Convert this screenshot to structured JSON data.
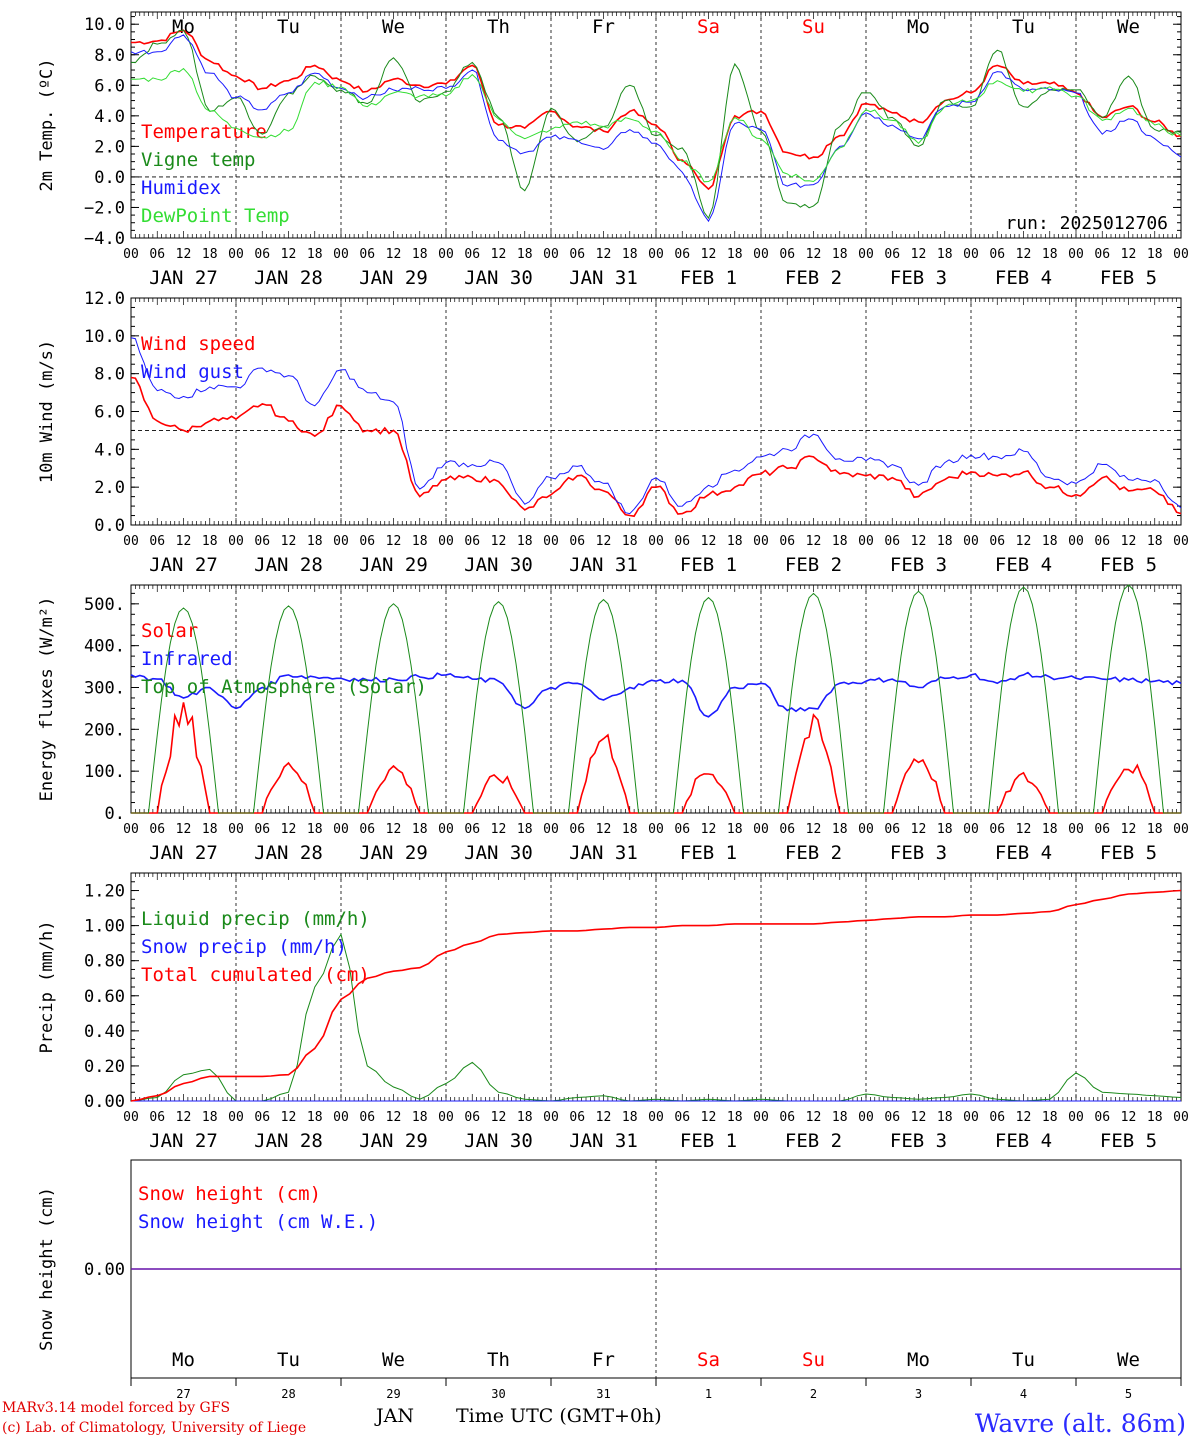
{
  "run_label": "run: 2025012706",
  "footer": {
    "model": "MARv3.14 model forced by GFS",
    "credit": "(c) Lab. of Climatology, University of Liege",
    "station": "Wavre (alt. 86m)",
    "xaxis_title": "Time UTC (GMT+0h)",
    "month": "JAN"
  },
  "days": [
    "Mo",
    "Tu",
    "We",
    "Th",
    "Fr",
    "Sa",
    "Su",
    "Mo",
    "Tu",
    "We"
  ],
  "weekend_color": "#ff0000",
  "weekend_days": [
    5,
    6
  ],
  "date_labels": [
    "JAN 27",
    "JAN 28",
    "JAN 29",
    "JAN 30",
    "JAN 31",
    "FEB  1",
    "FEB  2",
    "FEB  3",
    "FEB  4",
    "FEB  5"
  ],
  "day_numbers": [
    "27",
    "28",
    "29",
    "30",
    "31",
    "1",
    "2",
    "3",
    "4",
    "5"
  ],
  "hour_labels": [
    "00",
    "06",
    "12",
    "18"
  ],
  "colors": {
    "red": "#ff0000",
    "green": "#1a8a1a",
    "blue": "#1a1aff",
    "lightgreen": "#33dd33"
  },
  "chart_data": [
    {
      "type": "line",
      "id": "temperature",
      "ylabel": "2m Temp. (ºC)",
      "ylim": [
        -4,
        10.8
      ],
      "yticks": [
        -4,
        -2,
        0,
        2,
        4,
        6,
        8,
        10
      ],
      "yticklabels": [
        "−4.0",
        "−2.0",
        "0.0",
        "2.0",
        "4.0",
        "6.0",
        "8.0",
        "10.0"
      ],
      "reference_line": 0,
      "x_hours": [
        0,
        6,
        12,
        18,
        24,
        30,
        36,
        42,
        48,
        54,
        60,
        66,
        72,
        78,
        84,
        90,
        96,
        102,
        108,
        114,
        120,
        126,
        132,
        138,
        144,
        150,
        156,
        162,
        168,
        174,
        180,
        186,
        192,
        198,
        204,
        210,
        216,
        222,
        228,
        234,
        240
      ],
      "series": [
        {
          "name": "Temperature",
          "color": "red",
          "values": [
            8.8,
            8.9,
            9.6,
            7.6,
            6.6,
            5.8,
            6.3,
            7.3,
            6.3,
            5.6,
            6.4,
            6.0,
            6.1,
            7.3,
            3.4,
            3.2,
            4.3,
            3.3,
            3.0,
            4.3,
            3.4,
            1.1,
            -0.8,
            4.0,
            4.3,
            1.6,
            1.3,
            2.7,
            4.8,
            4.2,
            3.6,
            5.0,
            5.5,
            7.3,
            6.1,
            6.1,
            5.5,
            3.9,
            4.6,
            3.6,
            2.7
          ]
        },
        {
          "name": "Vigne temp",
          "color": "green",
          "values": [
            7.5,
            8.7,
            9.6,
            4.3,
            5.2,
            2.8,
            5.5,
            6.6,
            5.7,
            4.8,
            7.8,
            4.9,
            5.6,
            7.5,
            3.9,
            -0.9,
            4.5,
            2.3,
            3.3,
            6.0,
            2.7,
            1.9,
            -2.7,
            7.4,
            3.0,
            -1.7,
            -1.9,
            3.3,
            5.5,
            3.9,
            2.0,
            5.0,
            4.6,
            8.3,
            4.6,
            5.7,
            5.7,
            3.9,
            6.6,
            3.1,
            2.9
          ]
        },
        {
          "name": "Humidex",
          "color": "blue",
          "values": [
            8.2,
            8.2,
            9.3,
            6.8,
            5.2,
            4.4,
            5.5,
            6.8,
            5.8,
            5.2,
            5.7,
            5.8,
            5.8,
            7.0,
            2.4,
            1.6,
            2.6,
            2.4,
            1.8,
            3.1,
            2.2,
            0.3,
            -2.9,
            3.5,
            3.1,
            -0.6,
            -0.5,
            2.0,
            4.2,
            3.4,
            2.5,
            4.6,
            4.9,
            6.9,
            5.7,
            5.7,
            5.5,
            2.8,
            3.8,
            2.5,
            1.3
          ]
        },
        {
          "name": "DewPoint Temp",
          "color": "lightgreen",
          "values": [
            6.4,
            6.4,
            7.1,
            4.3,
            3.2,
            2.6,
            3.0,
            6.2,
            5.9,
            4.6,
            5.5,
            5.3,
            5.3,
            6.7,
            3.8,
            2.5,
            3.1,
            3.6,
            3.3,
            3.8,
            3.0,
            1.0,
            -0.3,
            3.9,
            2.5,
            0.2,
            -0.3,
            1.9,
            4.4,
            3.7,
            2.2,
            4.6,
            5.0,
            6.3,
            5.6,
            5.9,
            5.3,
            3.7,
            4.5,
            3.4,
            2.7
          ]
        }
      ]
    },
    {
      "type": "line",
      "id": "wind",
      "ylabel": "10m Wind (m/s)",
      "ylim": [
        0,
        12
      ],
      "yticks": [
        0,
        2,
        4,
        6,
        8,
        10,
        12
      ],
      "yticklabels": [
        "0.0",
        "2.0",
        "4.0",
        "6.0",
        "8.0",
        "10.0",
        "12.0"
      ],
      "reference_line": 5,
      "x_hours": [
        0,
        6,
        12,
        18,
        24,
        30,
        36,
        42,
        48,
        54,
        60,
        66,
        72,
        78,
        84,
        90,
        96,
        102,
        108,
        114,
        120,
        126,
        132,
        138,
        144,
        150,
        156,
        162,
        168,
        174,
        180,
        186,
        192,
        198,
        204,
        210,
        216,
        222,
        228,
        234,
        240
      ],
      "series": [
        {
          "name": "Wind speed",
          "color": "red",
          "values": [
            7.8,
            5.5,
            5.0,
            5.5,
            5.6,
            6.4,
            5.5,
            4.7,
            6.3,
            5.0,
            5.0,
            1.5,
            2.4,
            2.5,
            2.3,
            0.8,
            1.6,
            2.6,
            1.8,
            0.5,
            2.0,
            0.6,
            1.6,
            2.0,
            2.7,
            3.0,
            3.6,
            2.7,
            2.6,
            2.5,
            1.5,
            2.4,
            2.8,
            2.6,
            2.8,
            2.0,
            1.6,
            2.5,
            1.8,
            1.8,
            0.6
          ]
        },
        {
          "name": "Wind gust",
          "color": "blue",
          "values": [
            9.9,
            7.1,
            6.8,
            7.3,
            7.3,
            8.3,
            7.9,
            6.3,
            8.2,
            7.0,
            6.5,
            1.9,
            3.3,
            3.2,
            3.3,
            1.1,
            2.5,
            3.1,
            2.2,
            0.6,
            2.5,
            1.0,
            2.1,
            2.9,
            3.6,
            4.0,
            4.8,
            3.5,
            3.4,
            3.2,
            2.1,
            3.3,
            3.7,
            3.6,
            3.9,
            2.5,
            2.2,
            3.2,
            2.4,
            2.4,
            0.9
          ]
        }
      ]
    },
    {
      "type": "line",
      "id": "energy",
      "ylabel": "Energy fluxes (W/m²)",
      "ylim": [
        0,
        545
      ],
      "yticks": [
        0,
        100,
        200,
        300,
        400,
        500
      ],
      "yticklabels": [
        "0.",
        "100.",
        "200.",
        "300.",
        "400.",
        "500."
      ],
      "x_hours": [
        0,
        6,
        12,
        18,
        24,
        30,
        36,
        42,
        48,
        54,
        60,
        66,
        72,
        78,
        84,
        90,
        96,
        102,
        108,
        114,
        120,
        126,
        132,
        138,
        144,
        150,
        156,
        162,
        168,
        174,
        180,
        186,
        192,
        198,
        204,
        210,
        216,
        222,
        228,
        234,
        240
      ],
      "series": [
        {
          "name": "Solar",
          "color": "red",
          "peaks": [
            270,
            140,
            125,
            100,
            205,
            115,
            235,
            155,
            100,
            135
          ]
        },
        {
          "name": "Infrared",
          "color": "blue",
          "values": [
            330,
            320,
            275,
            300,
            250,
            300,
            330,
            325,
            322,
            318,
            320,
            325,
            330,
            320,
            315,
            250,
            300,
            310,
            270,
            300,
            315,
            317,
            230,
            300,
            310,
            245,
            250,
            310,
            315,
            320,
            300,
            322,
            330,
            310,
            330,
            325,
            322,
            320,
            318,
            315,
            310
          ]
        },
        {
          "name": "Top of Atmosphere (Solar)",
          "color": "green",
          "peaks": [
            490,
            495,
            500,
            505,
            510,
            515,
            525,
            530,
            540,
            545
          ]
        }
      ]
    },
    {
      "type": "line",
      "id": "precip",
      "ylabel": "Precip (mm/h)",
      "ylim": [
        0,
        1.3
      ],
      "yticks": [
        0,
        0.2,
        0.4,
        0.6,
        0.8,
        1.0,
        1.2
      ],
      "yticklabels": [
        "0.00",
        "0.20",
        "0.40",
        "0.60",
        "0.80",
        "1.00",
        "1.20"
      ],
      "x_hours": [
        0,
        6,
        12,
        18,
        24,
        30,
        36,
        42,
        48,
        54,
        60,
        66,
        72,
        78,
        84,
        90,
        96,
        102,
        108,
        114,
        120,
        126,
        132,
        138,
        144,
        150,
        156,
        162,
        168,
        174,
        180,
        186,
        192,
        198,
        204,
        210,
        216,
        222,
        228,
        234,
        240
      ],
      "series": [
        {
          "name": "Liquid precip (mm/h)",
          "color": "green",
          "values": [
            0.0,
            0.02,
            0.15,
            0.18,
            0.0,
            0.0,
            0.05,
            0.65,
            0.95,
            0.2,
            0.08,
            0.01,
            0.1,
            0.22,
            0.05,
            0.01,
            0.0,
            0.02,
            0.03,
            0.0,
            0.01,
            0.0,
            0.01,
            0.0,
            0.01,
            0.0,
            0.0,
            0.0,
            0.04,
            0.02,
            0.01,
            0.02,
            0.04,
            0.01,
            0.0,
            0.01,
            0.16,
            0.05,
            0.04,
            0.03,
            0.02
          ]
        },
        {
          "name": "Snow precip (mm/h)",
          "color": "blue",
          "values": [
            0,
            0,
            0,
            0,
            0,
            0,
            0,
            0,
            0,
            0,
            0,
            0,
            0,
            0,
            0,
            0,
            0,
            0,
            0,
            0,
            0,
            0,
            0,
            0,
            0,
            0,
            0,
            0,
            0,
            0,
            0,
            0,
            0,
            0,
            0,
            0,
            0,
            0,
            0,
            0,
            0
          ]
        },
        {
          "name": "Total cumulated (cm)",
          "color": "red",
          "values": [
            0.0,
            0.03,
            0.1,
            0.14,
            0.14,
            0.14,
            0.15,
            0.3,
            0.58,
            0.7,
            0.74,
            0.76,
            0.85,
            0.9,
            0.95,
            0.96,
            0.97,
            0.97,
            0.98,
            0.99,
            0.99,
            1.0,
            1.0,
            1.01,
            1.01,
            1.01,
            1.01,
            1.02,
            1.03,
            1.04,
            1.05,
            1.05,
            1.06,
            1.06,
            1.07,
            1.08,
            1.12,
            1.15,
            1.18,
            1.19,
            1.2
          ]
        }
      ]
    },
    {
      "type": "line",
      "id": "snow",
      "ylabel": "Snow height (cm)",
      "ylim": [
        -1,
        1
      ],
      "yticks": [
        0
      ],
      "yticklabels": [
        "0.00"
      ],
      "series": [
        {
          "name": "Snow height (cm)",
          "color": "red",
          "values": [
            0,
            0
          ]
        },
        {
          "name": "Snow height (cm W.E.)",
          "color": "blue",
          "values": [
            0,
            0
          ]
        }
      ]
    }
  ]
}
